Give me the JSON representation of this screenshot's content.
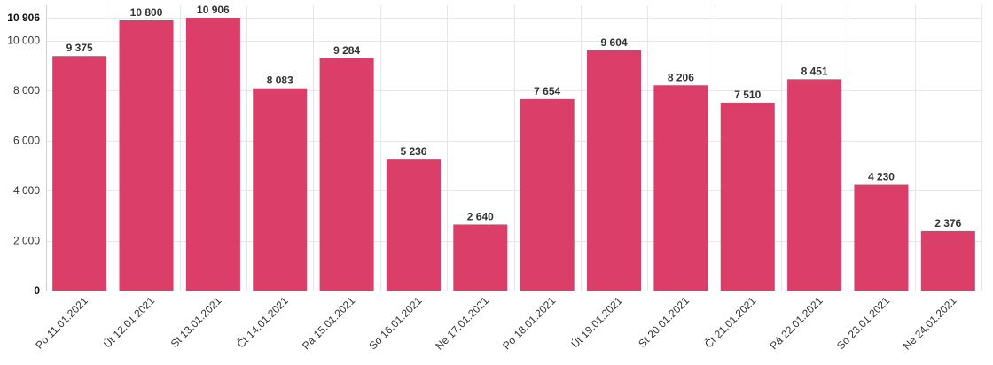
{
  "chart_data": {
    "type": "bar",
    "categories": [
      "Po 11.01.2021",
      "Út 12.01.2021",
      "St 13.01.2021",
      "Čt 14.01.2021",
      "Pá 15.01.2021",
      "So 16.01.2021",
      "Ne 17.01.2021",
      "Po 18.01.2021",
      "Út 19.01.2021",
      "St 20.01.2021",
      "Čt 21.01.2021",
      "Pá 22.01.2021",
      "So 23.01.2021",
      "Ne 24.01.2021"
    ],
    "values": [
      9375,
      10800,
      10906,
      8083,
      9284,
      5236,
      2640,
      7654,
      9604,
      8206,
      7510,
      8451,
      4230,
      2376
    ],
    "data_labels": [
      "9 375",
      "10 800",
      "10 906",
      "8 083",
      "9 284",
      "5 236",
      "2 640",
      "7 654",
      "9 604",
      "8 206",
      "7 510",
      "8 451",
      "4 230",
      "2 376"
    ],
    "yticks": [
      0,
      2000,
      4000,
      6000,
      8000,
      10000
    ],
    "ytick_labels": [
      "0",
      "2 000",
      "4 000",
      "6 000",
      "8 000",
      "10 000"
    ],
    "ymax_label": "10 906",
    "ylim": [
      0,
      10906
    ],
    "grid": true,
    "bar_color": "#dc3e6a",
    "title": "",
    "xlabel": "",
    "ylabel": ""
  }
}
